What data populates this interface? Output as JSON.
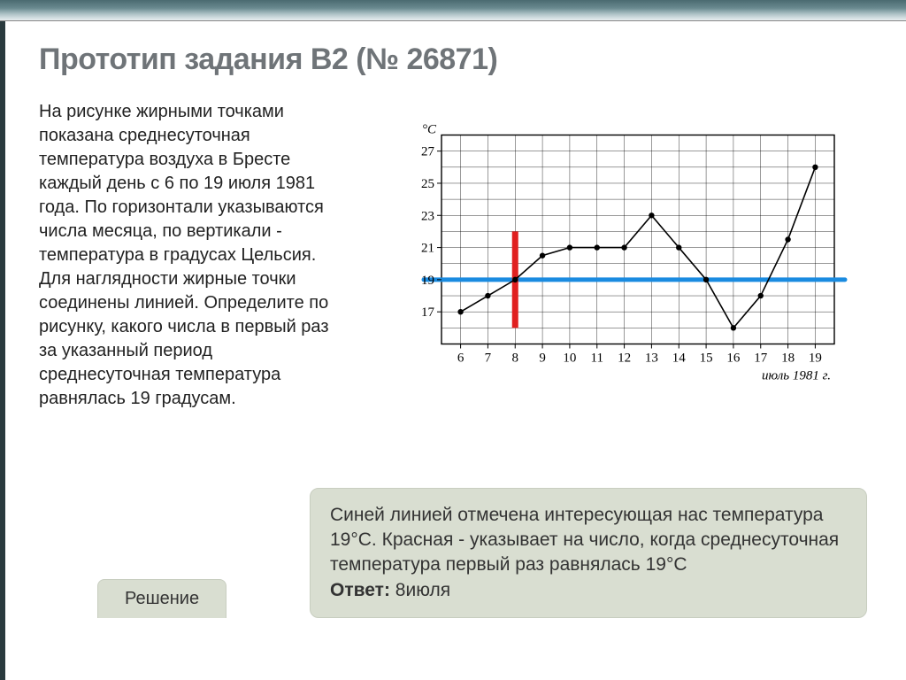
{
  "title": "Прототип задания B2 (№ 26871)",
  "problem_text": "На рисунке жирными точками показана среднесуточная температура воздуха в Бресте каждый день с 6 по 19 июля 1981 года. По горизонтали указываются числа месяца, по вертикали - температура в градусах Цельсия. Для наглядности жирные точки соединены линией. Определите по рисунку, какого числа в первый раз за указанный период среднесуточная температура равнялась 19 градусам.",
  "explanation": {
    "body": "Синей линией отмечена интересующая нас температура 19°C. Красная - указывает на число, когда среднесуточная температура первый раз равнялась 19°C",
    "answer_label": "Ответ:",
    "answer_value": "8июля"
  },
  "solution_label": "Решение",
  "chart": {
    "type": "line",
    "background_color": "#ffffff",
    "border_color": "#000000",
    "grid_color": "#000000",
    "grid_stroke": 0.4,
    "x_label_bottom": "июль 1981 г.",
    "y_unit": "°C",
    "x_ticks": [
      6,
      7,
      8,
      9,
      10,
      11,
      12,
      13,
      14,
      15,
      16,
      17,
      18,
      19
    ],
    "y_ticks": [
      17,
      19,
      21,
      23,
      25,
      27
    ],
    "line_color": "#000000",
    "marker_color": "#000000",
    "marker_radius": 3.2,
    "line_width": 1.6,
    "data": [
      {
        "x": 6,
        "y": 17
      },
      {
        "x": 7,
        "y": 18
      },
      {
        "x": 8,
        "y": 19
      },
      {
        "x": 9,
        "y": 20.5
      },
      {
        "x": 10,
        "y": 21
      },
      {
        "x": 11,
        "y": 21
      },
      {
        "x": 12,
        "y": 21
      },
      {
        "x": 13,
        "y": 23
      },
      {
        "x": 14,
        "y": 21
      },
      {
        "x": 15,
        "y": 19
      },
      {
        "x": 16,
        "y": 16
      },
      {
        "x": 17,
        "y": 18
      },
      {
        "x": 18,
        "y": 21.5
      },
      {
        "x": 19,
        "y": 26
      }
    ],
    "highlight_h": {
      "y": 19,
      "color": "#1a8be0",
      "width": 5
    },
    "highlight_v": {
      "x": 8,
      "color": "#e02020",
      "width": 7,
      "y_from": 16,
      "y_to": 22
    },
    "ylim": [
      15,
      28
    ],
    "xlim": [
      5.3,
      19.7
    ],
    "axis_fontsize": 15,
    "label_font": "serif"
  },
  "colors": {
    "title": "#6f7478",
    "box_bg": "#d9ded1",
    "box_border": "#c8cec0",
    "top_gradient_dark": "#4a6a70",
    "top_gradient_light": "#e8eef0"
  }
}
